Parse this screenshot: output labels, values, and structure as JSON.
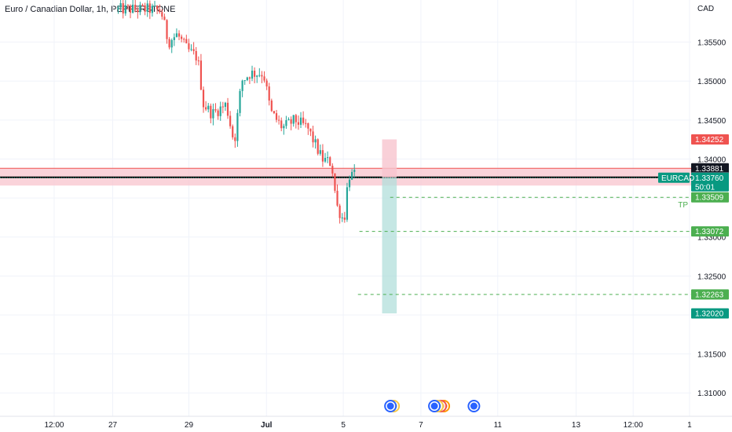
{
  "header": {
    "title": "Euro / Canadian Dollar, 1h, PEPPERSTONE",
    "currency": "CAD"
  },
  "colors": {
    "up": "#26a69a",
    "down": "#ef5350",
    "grid": "#f0f3fa",
    "zone_fill": "#f8c4ce",
    "zone_border": "#ef5350",
    "stop_fill": "#f8c4ce",
    "target_fill": "#b2dfdb",
    "tp_line": "#4caf50",
    "axis_text": "#131722"
  },
  "chart_data": {
    "type": "candlestick",
    "symbol": "EURCAD",
    "timeframe": "1h",
    "ylim": [
      1.307,
      1.36
    ],
    "y_ticks": [
      "1.31000",
      "1.31500",
      "1.32000",
      "1.32500",
      "1.33000",
      "1.33500",
      "1.34000",
      "1.34500",
      "1.35000",
      "1.35500"
    ],
    "x_ticks": [
      "12:00",
      "27",
      "29",
      "Jul",
      "5",
      "7",
      "11",
      "13",
      "12:00",
      "1"
    ],
    "price_path": [
      [
        0.1615,
        1.3592
      ],
      [
        0.204,
        1.3592
      ],
      [
        0.22,
        1.359
      ],
      [
        0.23,
        1.355
      ],
      [
        0.242,
        1.356
      ],
      [
        0.256,
        1.354
      ],
      [
        0.27,
        1.353
      ],
      [
        0.278,
        1.347
      ],
      [
        0.29,
        1.3458
      ],
      [
        0.309,
        1.347
      ],
      [
        0.32,
        1.342
      ],
      [
        0.33,
        1.35
      ],
      [
        0.342,
        1.351
      ],
      [
        0.36,
        1.351
      ],
      [
        0.37,
        1.346
      ],
      [
        0.386,
        1.344
      ],
      [
        0.403,
        1.345
      ],
      [
        0.42,
        1.344
      ],
      [
        0.44,
        1.34
      ],
      [
        0.453,
        1.3395
      ],
      [
        0.46,
        1.334
      ],
      [
        0.47,
        1.332
      ],
      [
        0.476,
        1.338
      ],
      [
        0.486,
        1.3378
      ]
    ],
    "zone": {
      "top": 1.33881,
      "bottom": 1.3366
    },
    "resistance_line": 1.33766,
    "position": {
      "side": "short",
      "entry": 1.3376,
      "stop": 1.34252,
      "target": 1.3202,
      "x_start": 0.522,
      "x_end": 0.542
    },
    "dashed_levels": [
      {
        "value": 1.33509,
        "label": "TP",
        "x_start": 0.533
      },
      {
        "value": 1.33072,
        "label": "",
        "x_start": 0.491
      },
      {
        "value": 1.32263,
        "label": "",
        "x_start": 0.489
      }
    ],
    "price_tags": [
      {
        "value": 1.34252,
        "text": "1.34252",
        "color": "#ef5350"
      },
      {
        "value": 1.33881,
        "text": "1.33881",
        "color": "#131722"
      },
      {
        "value": 1.33766,
        "text": "1.33766",
        "color": "#787b86"
      },
      {
        "value": 1.3376,
        "text": "1.33760",
        "color": "#089981",
        "sub": "50:01",
        "symbol": "EURCAD"
      },
      {
        "value": 1.33509,
        "text": "1.33509",
        "color": "#4caf50"
      },
      {
        "value": 1.33072,
        "text": "1.33072",
        "color": "#4caf50"
      },
      {
        "value": 1.32263,
        "text": "1.32263",
        "color": "#4caf50"
      },
      {
        "value": 1.3202,
        "text": "1.32020",
        "color": "#089981"
      }
    ],
    "event_markers": [
      {
        "x": 0.542,
        "count": 2
      },
      {
        "x": 0.602,
        "count": 4
      },
      {
        "x": 0.656,
        "count": 1
      }
    ]
  }
}
